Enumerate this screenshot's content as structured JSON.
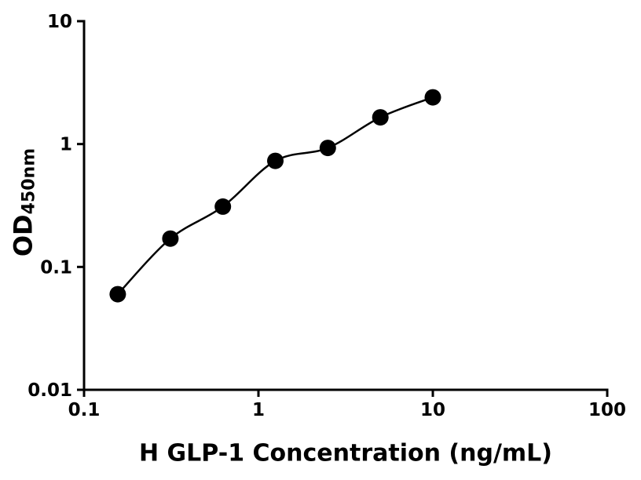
{
  "chart_data": {
    "type": "scatter",
    "title": "",
    "xlabel": "H GLP-1 Concentration (ng/mL)",
    "ylabel": "OD",
    "ylabel_subscript": "450nm",
    "xscale": "log",
    "yscale": "log",
    "xlim": [
      0.1,
      100
    ],
    "ylim": [
      0.01,
      10
    ],
    "x_ticks": [
      0.1,
      1,
      10,
      100
    ],
    "x_tick_labels": [
      "0.1",
      "1",
      "10",
      "100"
    ],
    "y_ticks": [
      0.01,
      0.1,
      1,
      10
    ],
    "y_tick_labels": [
      "0.01",
      "0.1",
      "1",
      "10"
    ],
    "x": [
      0.156,
      0.3125,
      0.625,
      1.25,
      2.5,
      5,
      10
    ],
    "y": [
      0.06,
      0.17,
      0.31,
      0.73,
      0.93,
      1.65,
      2.4
    ],
    "marker": "filled-circle",
    "marker_color": "#000000",
    "line_color": "#000000",
    "background_color": "#ffffff",
    "grid": "off",
    "legend": "none",
    "curve": "smooth fitted curve through data points"
  }
}
